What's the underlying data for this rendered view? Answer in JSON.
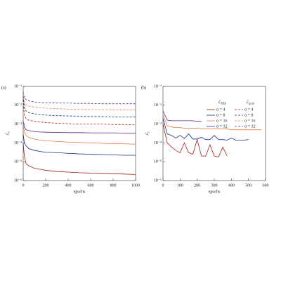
{
  "chart_data": [
    {
      "type": "line",
      "panel_label": "(a)",
      "x_label": "epochs",
      "y_label": {
        "main": "ℒ",
        "sub": "v"
      },
      "log_y": true,
      "xlim": [
        0,
        1000
      ],
      "xticks": [
        0,
        200,
        400,
        600,
        800,
        1000
      ],
      "ylim": [
        1e-06,
        0.1
      ],
      "yticks": [
        {
          "value": 1e-06,
          "label": "10⁻⁶"
        },
        {
          "value": 1e-05,
          "label": "10⁻⁵"
        },
        {
          "value": 0.0001,
          "label": "10⁻⁴"
        },
        {
          "value": 0.001,
          "label": "10⁻³"
        },
        {
          "value": 0.01,
          "label": "10⁻²"
        },
        {
          "value": 0.1,
          "label": "10⁻¹"
        }
      ],
      "x": [
        0,
        10,
        25,
        50,
        100,
        150,
        200,
        300,
        400,
        500,
        600,
        700,
        800,
        900,
        1000
      ],
      "series": [
        {
          "color": "#a51d12",
          "dashed": false,
          "values": [
            0.0001,
            2e-05,
            8e-06,
            6e-06,
            4.5e-06,
            4e-06,
            3.5e-06,
            3e-06,
            2.8e-06,
            2.6e-06,
            2.5e-06,
            2.4e-06,
            2.3e-06,
            2.2e-06,
            2.1e-06
          ]
        },
        {
          "color": "#0d2f8f",
          "dashed": false,
          "values": [
            0.0003,
            0.0001,
            7e-05,
            5e-05,
            4e-05,
            3.5e-05,
            3.2e-05,
            3e-05,
            2.8e-05,
            2.6e-05,
            2.5e-05,
            2.4e-05,
            2.3e-05,
            2.2e-05,
            2.2e-05
          ]
        },
        {
          "color": "#ee7f4a",
          "dashed": false,
          "values": [
            0.001,
            0.0004,
            0.00025,
            0.0002,
            0.00016,
            0.00014,
            0.00013,
            0.00012,
            0.00011,
            0.000105,
            0.0001,
            9.5e-05,
            9e-05,
            9e-05,
            8.5e-05
          ]
        },
        {
          "color": "#5b2a86",
          "dashed": false,
          "values": [
            0.0015,
            0.0007,
            0.0005,
            0.00045,
            0.0004,
            0.00038,
            0.00037,
            0.00036,
            0.00035,
            0.00035,
            0.00034,
            0.00034,
            0.00034,
            0.00033,
            0.00033
          ]
        },
        {
          "color": "#a51d12",
          "dashed": true,
          "values": [
            0.02,
            0.003,
            0.002,
            0.0016,
            0.0014,
            0.0013,
            0.0012,
            0.0011,
            0.00105,
            0.001,
            0.001,
            0.001,
            0.00095,
            0.00095,
            0.0009
          ]
        },
        {
          "color": "#0d2f8f",
          "dashed": true,
          "values": [
            0.03,
            0.008,
            0.005,
            0.004,
            0.0035,
            0.0032,
            0.003,
            0.0028,
            0.0027,
            0.0026,
            0.0025,
            0.0025,
            0.0024,
            0.0024,
            0.0024
          ]
        },
        {
          "color": "#ee7f4a",
          "dashed": true,
          "values": [
            0.04,
            0.015,
            0.011,
            0.009,
            0.008,
            0.0075,
            0.007,
            0.0065,
            0.0062,
            0.006,
            0.006,
            0.0058,
            0.0057,
            0.0056,
            0.0055
          ]
        },
        {
          "color": "#5b2a86",
          "dashed": true,
          "values": [
            0.05,
            0.025,
            0.02,
            0.017,
            0.015,
            0.014,
            0.0135,
            0.013,
            0.013,
            0.0125,
            0.0125,
            0.012,
            0.012,
            0.012,
            0.012
          ]
        }
      ]
    },
    {
      "type": "line",
      "panel_label": "(b)",
      "x_label": "epochs",
      "y_label": {
        "main": "ℒ",
        "sub": "v"
      },
      "log_y": true,
      "xlim": [
        0,
        600
      ],
      "xticks": [
        0,
        100,
        200,
        300,
        400,
        500,
        600
      ],
      "ylim": [
        1e-06,
        0.1
      ],
      "yticks": [
        {
          "value": 1e-06,
          "label": "10⁻⁶"
        },
        {
          "value": 1e-05,
          "label": "10⁻⁵"
        },
        {
          "value": 0.0001,
          "label": "10⁻⁴"
        },
        {
          "value": 0.001,
          "label": "10⁻³"
        },
        {
          "value": 0.01,
          "label": "10⁻²"
        },
        {
          "value": 0.1,
          "label": "10⁻¹"
        }
      ],
      "legend_titles": [
        {
          "main": "ℒ",
          "sub": "MSE"
        },
        {
          "main": "ℒ",
          "sub": "grad"
        }
      ],
      "x": [
        0,
        25,
        50,
        75,
        100,
        125,
        150,
        175,
        200,
        225,
        250,
        275,
        300,
        325,
        350,
        375,
        400,
        425,
        450,
        475,
        500,
        525,
        550,
        575,
        600
      ],
      "series": [
        {
          "name": "α = 4",
          "color": "#a51d12",
          "dashed": false,
          "values": [
            0.001,
            0.0001,
            6e-05,
            4e-05,
            3e-05,
            0.0001,
            3e-05,
            2.5e-05,
            0.00015,
            2e-05,
            2e-05,
            8e-05,
            2e-05,
            1.8e-05,
            6e-05,
            2e-05,
            null,
            null,
            null,
            null,
            null,
            null,
            null,
            null,
            null
          ]
        },
        {
          "name": "α = 8",
          "color": "#0d2f8f",
          "dashed": false,
          "values": [
            0.002,
            0.0003,
            0.00025,
            0.00018,
            0.00025,
            0.00017,
            0.0003,
            0.00016,
            0.00016,
            0.0002,
            0.00015,
            0.00015,
            0.00025,
            0.00015,
            0.00015,
            0.00014,
            0.00018,
            0.00014,
            0.00014,
            0.00014,
            0.00015,
            null,
            null,
            null,
            null
          ]
        },
        {
          "name": "α = 16",
          "color": "#ee7f4a",
          "dashed": false,
          "values": [
            0.003,
            0.0008,
            0.0007,
            0.00065,
            0.00065,
            0.0006,
            0.0006,
            0.0006,
            0.0006,
            0.00055,
            0.00055,
            0.00055,
            0.00055,
            0.00055,
            0.00055,
            0.00055,
            0.0005,
            0.0005,
            0.0005,
            0.0005,
            0.0005,
            0.0005,
            0.0005,
            0.0005,
            null
          ]
        },
        {
          "name": "α = 32",
          "color": "#5b2a86",
          "dashed": false,
          "values": [
            0.005,
            0.0016,
            0.0015,
            0.0015,
            0.0015,
            0.0015,
            0.0015,
            0.0015,
            0.0014,
            0.0014,
            null,
            null,
            null,
            null,
            null,
            null,
            null,
            null,
            null,
            null,
            null,
            null,
            null,
            null,
            null
          ]
        },
        {
          "name": "α = 4",
          "color": "#a51d12",
          "dashed": true,
          "values": [
            null,
            null,
            null,
            null,
            null,
            null,
            null,
            null,
            null,
            null,
            null,
            null,
            null,
            null,
            null,
            null,
            null,
            null,
            null,
            null,
            null,
            null,
            null,
            null,
            null
          ]
        },
        {
          "name": "α = 8",
          "color": "#0d2f8f",
          "dashed": true,
          "values": [
            null,
            null,
            null,
            null,
            null,
            null,
            null,
            null,
            null,
            null,
            null,
            null,
            null,
            null,
            null,
            null,
            null,
            null,
            null,
            null,
            null,
            null,
            null,
            null,
            null
          ]
        },
        {
          "name": "α = 16",
          "color": "#ee7f4a",
          "dashed": true,
          "values": [
            null,
            null,
            null,
            null,
            null,
            null,
            null,
            null,
            null,
            null,
            null,
            null,
            null,
            null,
            null,
            null,
            null,
            null,
            null,
            null,
            null,
            null,
            null,
            null,
            null
          ]
        },
        {
          "name": "α = 32",
          "color": "#5b2a86",
          "dashed": true,
          "values": [
            null,
            null,
            null,
            null,
            null,
            null,
            null,
            null,
            null,
            null,
            null,
            null,
            null,
            null,
            null,
            null,
            null,
            null,
            null,
            null,
            null,
            null,
            null,
            null,
            null
          ]
        }
      ]
    }
  ]
}
